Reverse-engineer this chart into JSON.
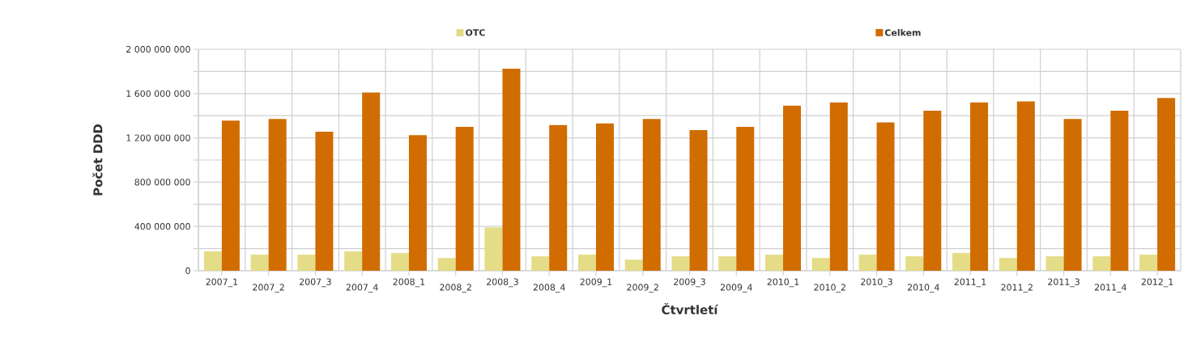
{
  "chart_data": {
    "type": "bar",
    "xlabel": "Čtvrtletí",
    "ylabel": "Počet DDD",
    "categories": [
      "2007_1",
      "2007_2",
      "2007_3",
      "2007_4",
      "2008_1",
      "2008_2",
      "2008_3",
      "2008_4",
      "2009_1",
      "2009_2",
      "2009_3",
      "2009_4",
      "2010_1",
      "2010_2",
      "2010_3",
      "2010_4",
      "2011_1",
      "2011_2",
      "2011_3",
      "2011_4",
      "2012_1"
    ],
    "series": [
      {
        "name": "OTC",
        "color": "#e4dc86",
        "values": [
          175000000,
          145000000,
          145000000,
          175000000,
          160000000,
          115000000,
          390000000,
          130000000,
          145000000,
          100000000,
          130000000,
          130000000,
          145000000,
          115000000,
          145000000,
          130000000,
          160000000,
          115000000,
          130000000,
          130000000,
          145000000
        ]
      },
      {
        "name": "Celkem",
        "color": "#d06c00",
        "values": [
          1355000000,
          1370000000,
          1255000000,
          1610000000,
          1225000000,
          1300000000,
          1825000000,
          1315000000,
          1330000000,
          1370000000,
          1270000000,
          1300000000,
          1490000000,
          1520000000,
          1340000000,
          1445000000,
          1520000000,
          1530000000,
          1370000000,
          1445000000,
          1560000000
        ]
      }
    ],
    "ylim": [
      0,
      2000000000
    ],
    "yticks": [
      {
        "value": 0,
        "label": "0"
      },
      {
        "value": 200000000,
        "label": null
      },
      {
        "value": 400000000,
        "label": "400 000 000"
      },
      {
        "value": 600000000,
        "label": null
      },
      {
        "value": 800000000,
        "label": "800 000 000"
      },
      {
        "value": 1000000000,
        "label": null
      },
      {
        "value": 1200000000,
        "label": "1 200 000 000"
      },
      {
        "value": 1400000000,
        "label": null
      },
      {
        "value": 1600000000,
        "label": "1 600 000 000"
      },
      {
        "value": 1800000000,
        "label": null
      },
      {
        "value": 2000000000,
        "label": "2 000 000 000"
      }
    ],
    "grid": true,
    "legend": "top"
  }
}
